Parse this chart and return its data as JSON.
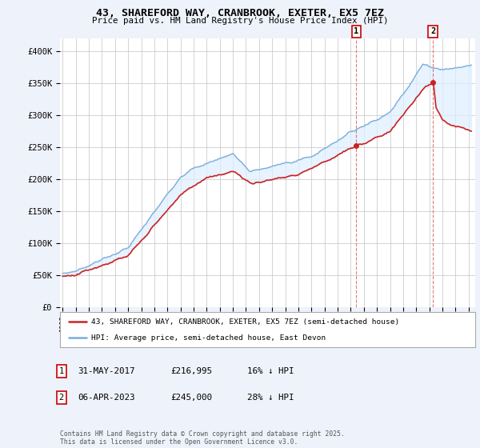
{
  "title": "43, SHAREFORD WAY, CRANBROOK, EXETER, EX5 7EZ",
  "subtitle": "Price paid vs. HM Land Registry's House Price Index (HPI)",
  "ylabel_ticks": [
    "£0",
    "£50K",
    "£100K",
    "£150K",
    "£200K",
    "£250K",
    "£300K",
    "£350K",
    "£400K"
  ],
  "ytick_values": [
    0,
    50000,
    100000,
    150000,
    200000,
    250000,
    300000,
    350000,
    400000
  ],
  "ylim": [
    0,
    420000
  ],
  "xlim_start": 1994.8,
  "xlim_end": 2026.5,
  "hpi_color": "#7aaddb",
  "property_color": "#cc2222",
  "fill_color": "#ddeeff",
  "marker1_x": 2017.42,
  "marker2_x": 2023.27,
  "marker1_price": 216995,
  "marker2_price": 245000,
  "legend_property": "43, SHAREFORD WAY, CRANBROOK, EXETER, EX5 7EZ (semi-detached house)",
  "legend_hpi": "HPI: Average price, semi-detached house, East Devon",
  "annotation1_date": "31-MAY-2017",
  "annotation1_price": "£216,995",
  "annotation1_hpi": "16% ↓ HPI",
  "annotation2_date": "06-APR-2023",
  "annotation2_price": "£245,000",
  "annotation2_hpi": "28% ↓ HPI",
  "footer": "Contains HM Land Registry data © Crown copyright and database right 2025.\nThis data is licensed under the Open Government Licence v3.0.",
  "bg_color": "#eef2fa",
  "plot_bg": "#ffffff",
  "grid_color": "#cccccc"
}
